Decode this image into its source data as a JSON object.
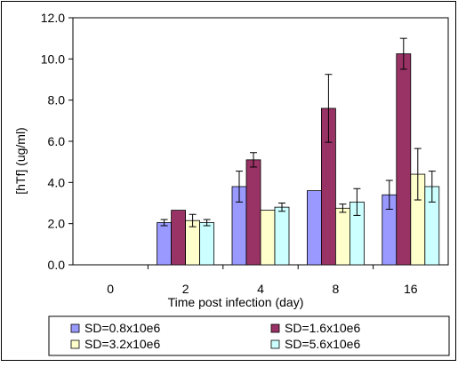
{
  "chart_data": {
    "type": "bar",
    "title": "",
    "xlabel": "Time post infection (day)",
    "ylabel": "[hTf]  (ug/ml)",
    "categories": [
      "0",
      "2",
      "4",
      "8",
      "16"
    ],
    "ylim": [
      0,
      12
    ],
    "yticks": [
      "0.0",
      "2.0",
      "4.0",
      "6.0",
      "8.0",
      "10.0",
      "12.0"
    ],
    "grid": false,
    "legend_position": "bottom",
    "series": [
      {
        "name": "SD=0.8x10e6",
        "color": "#9999ff",
        "values": [
          0,
          2.05,
          3.8,
          3.6,
          3.4
        ],
        "errors": [
          0,
          0.15,
          0.75,
          0,
          0.7
        ]
      },
      {
        "name": "SD=1.6x10e6",
        "color": "#993366",
        "values": [
          0,
          2.65,
          5.1,
          7.6,
          10.25
        ],
        "errors": [
          0,
          0,
          0.35,
          1.65,
          0.75
        ]
      },
      {
        "name": "SD=3.2x10e6",
        "color": "#ffffcc",
        "values": [
          0,
          2.15,
          2.65,
          2.75,
          4.4
        ],
        "errors": [
          0,
          0.3,
          0,
          0.2,
          1.25
        ]
      },
      {
        "name": "SD=5.6x10e6",
        "color": "#ccffff",
        "values": [
          0,
          2.05,
          2.8,
          3.05,
          3.8
        ],
        "errors": [
          0,
          0.15,
          0.2,
          0.65,
          0.75
        ]
      }
    ]
  }
}
